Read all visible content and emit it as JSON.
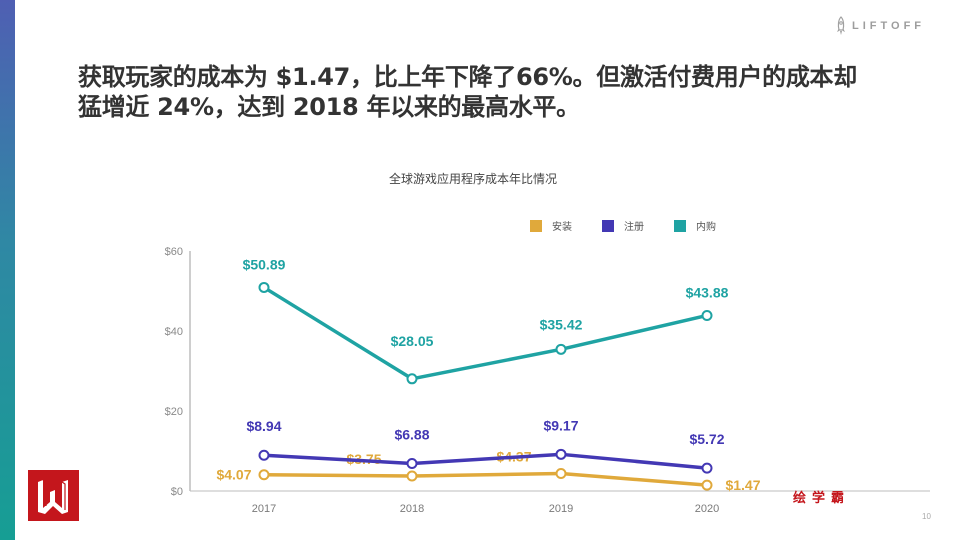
{
  "brand": {
    "name": "LIFTOFF",
    "icon": "rocket-icon"
  },
  "headline": {
    "line1": "获取玩家的成本为 $1.47，比上年下降了66%。但激活付费用户的成本却",
    "line2": "猛增近 24%，达到 2018 年以来的最高水平。"
  },
  "chart_data": {
    "type": "line",
    "title": "全球游戏应用程序成本年比情况",
    "xlabel": "",
    "ylabel": "",
    "categories": [
      "2017",
      "2018",
      "2019",
      "2020"
    ],
    "ylim": [
      0,
      60
    ],
    "yticks": [
      0,
      20,
      40,
      60
    ],
    "ytick_labels": [
      "$0",
      "$20",
      "$40",
      "$60"
    ],
    "grid": false,
    "legend_position": "top-right",
    "series": [
      {
        "name": "安装",
        "color": "#e0a93b",
        "values": [
          4.07,
          3.75,
          4.37,
          1.47
        ],
        "labels": [
          "$4.07",
          "$3.75",
          "$4.37",
          "$1.47"
        ]
      },
      {
        "name": "注册",
        "color": "#4338b4",
        "values": [
          8.94,
          6.88,
          9.17,
          5.72
        ],
        "labels": [
          "$8.94",
          "$6.88",
          "$9.17",
          "$5.72"
        ]
      },
      {
        "name": "内购",
        "color": "#1fa3a3",
        "values": [
          50.89,
          28.05,
          35.42,
          43.88
        ],
        "labels": [
          "$50.89",
          "$28.05",
          "$35.42",
          "$43.88"
        ]
      }
    ]
  },
  "watermark": "绘学霸",
  "page_number": "10",
  "colors": {
    "accent_gradient_top": "#4f5fb3",
    "accent_gradient_bottom": "#169e94",
    "badge_red": "#c4161c"
  }
}
